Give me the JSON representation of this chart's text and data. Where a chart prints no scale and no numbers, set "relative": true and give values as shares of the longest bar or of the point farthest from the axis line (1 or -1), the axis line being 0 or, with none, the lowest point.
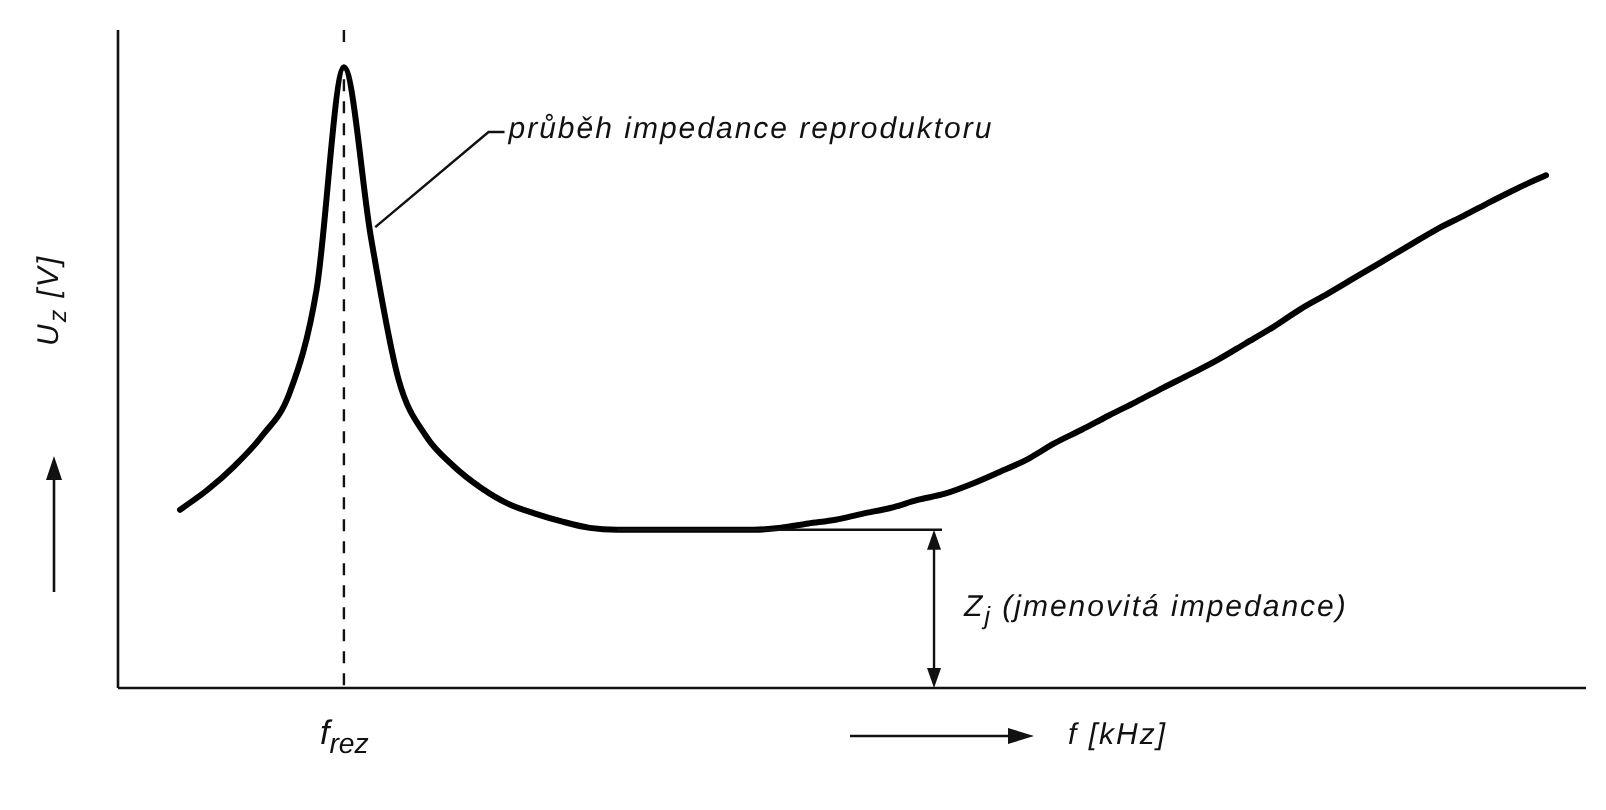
{
  "chart_data": {
    "type": "line",
    "xlabel": "f [kHz]",
    "ylabel": "U$_{z}$ [V]",
    "annotations": [
      "průběh impedance reproduktoru",
      "Z$_{j}$ (jmenovitá impedance)",
      "f$_{rez}$"
    ],
    "relative": true,
    "line_style": "solid",
    "categories": [
      null,
      null,
      null,
      null,
      null,
      null,
      null,
      null,
      null,
      null,
      null,
      null,
      null,
      null,
      null,
      null,
      null,
      null,
      null,
      null,
      null,
      null,
      null,
      null,
      null,
      null,
      null,
      null,
      null,
      null,
      null,
      null,
      null,
      null,
      null,
      null,
      null,
      null,
      null,
      null,
      null,
      null,
      null,
      null,
      null,
      null,
      null,
      null,
      null,
      null,
      null
    ],
    "series": [
      {
        "color": "#000000",
        "values": [
          0.287,
          0.319,
          0.358,
          0.406,
          0.474,
          0.642,
          1,
          0.723,
          0.497,
          0.406,
          0.358,
          0.323,
          0.297,
          0.281,
          0.268,
          0.258,
          0.255,
          0.255,
          0.255,
          0.255,
          0.255,
          0.255,
          0.258,
          0.265,
          0.271,
          0.281,
          0.29,
          0.303,
          0.313,
          0.329,
          0.348,
          0.368,
          0.394,
          0.416,
          0.439,
          0.461,
          0.484,
          0.506,
          0.529,
          0.555,
          0.581,
          0.61,
          0.635,
          0.661,
          0.687,
          0.713,
          0.739,
          0.761,
          0.784,
          0.806,
          0.826
        ]
      }
    ]
  }
}
